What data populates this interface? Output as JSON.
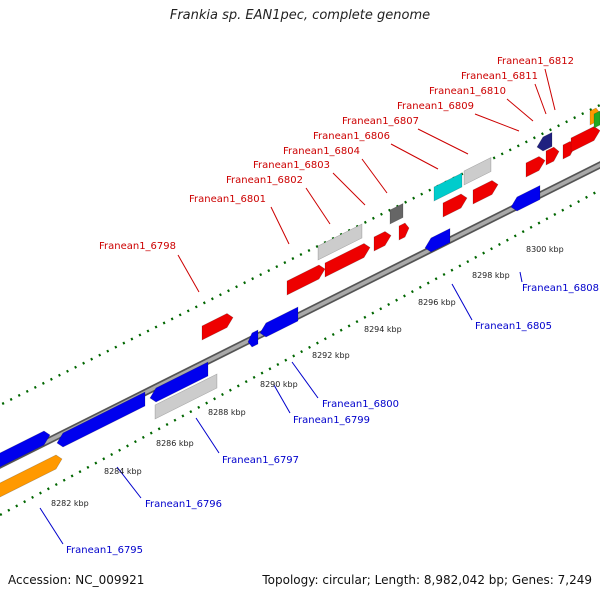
{
  "title": "Frankia sp. EAN1pec, complete genome",
  "accession": "Accession: NC_009921",
  "summary": "Topology: circular; Length: 8,982,042 bp; Genes: 7,249",
  "colors": {
    "fwd_label": "#cc0000",
    "rev_label": "#0000cc",
    "backbone": "#888888",
    "red_gene": "#ee0000",
    "blue_gene": "#0000ee",
    "gray_gene": "#cccccc",
    "orange_gene": "#ff9900",
    "cyan_gene": "#00cccc",
    "navy_gene": "#202080",
    "tick": "#006600"
  },
  "kbp_ticks": [
    "8282 kbp",
    "8284 kbp",
    "8286 kbp",
    "8288 kbp",
    "8290 kbp",
    "8292 kbp",
    "8294 kbp",
    "8296 kbp",
    "8298 kbp",
    "8300 kbp"
  ],
  "forward_labels": [
    "Franean1_6798",
    "Franean1_6801",
    "Franean1_6802",
    "Franean1_6803",
    "Franean1_6804",
    "Franean1_6806",
    "Franean1_6807",
    "Franean1_6809",
    "Franean1_6810",
    "Franean1_6811",
    "Franean1_6812"
  ],
  "reverse_labels": [
    "Franean1_6795",
    "Franean1_6796",
    "Franean1_6797",
    "Franean1_6799",
    "Franean1_6800",
    "Franean1_6805",
    "Franean1_6808"
  ]
}
